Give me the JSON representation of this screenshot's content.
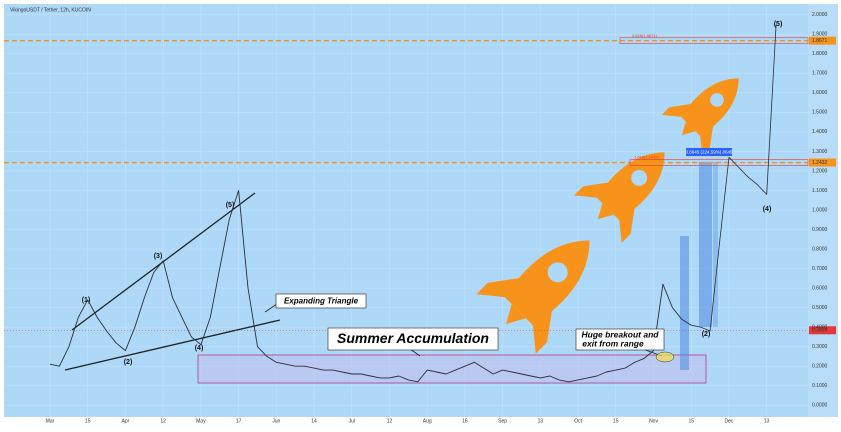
{
  "chart_data": {
    "type": "line",
    "title": "VikingoUSDT / Tether, 12h, KUCOIN",
    "categories": [
      "Mar",
      null,
      null,
      null,
      "15",
      null,
      null,
      null,
      "Apr",
      null,
      null,
      null,
      "12",
      null,
      null,
      null,
      "May",
      null,
      null,
      null,
      "17",
      null,
      null,
      null,
      "Jun",
      null,
      null,
      null,
      "14",
      null,
      null,
      null,
      "Jul",
      null,
      null,
      null,
      "12",
      null,
      null,
      null,
      "Aug",
      null,
      null,
      null,
      "16",
      null,
      null,
      null,
      "Sep",
      null,
      null,
      null,
      "13",
      null,
      null,
      null,
      "Oct",
      null,
      null,
      null,
      "15",
      null,
      null,
      null,
      "Nov",
      null,
      null,
      null,
      "15",
      null,
      null,
      null,
      "Dec",
      null,
      null,
      null,
      "13",
      null
    ],
    "series": [
      {
        "color": "#2a2e39",
        "values": [
          0.21,
          0.2,
          0.3,
          0.45,
          0.54,
          0.45,
          0.38,
          0.32,
          0.28,
          0.4,
          0.55,
          0.68,
          0.74,
          0.55,
          0.45,
          0.35,
          0.31,
          0.45,
          0.7,
          0.95,
          1.1,
          0.6,
          0.3,
          0.25,
          0.22,
          0.21,
          0.2,
          0.2,
          0.19,
          0.18,
          0.18,
          0.17,
          0.16,
          0.16,
          0.15,
          0.14,
          0.14,
          0.15,
          0.13,
          0.12,
          0.18,
          0.17,
          0.16,
          0.18,
          0.2,
          0.22,
          0.19,
          0.16,
          0.18,
          0.17,
          0.16,
          0.15,
          0.14,
          0.15,
          0.13,
          0.12,
          0.13,
          0.14,
          0.15,
          0.17,
          0.18,
          0.19,
          0.22,
          0.24,
          0.28,
          0.62,
          0.5,
          0.44,
          0.41,
          null,
          null,
          null,
          null,
          null,
          null,
          null,
          null,
          null
        ]
      },
      {
        "color": "#2a2e39",
        "values": [
          null,
          null,
          null,
          null,
          null,
          null,
          null,
          null,
          null,
          null,
          null,
          null,
          null,
          null,
          null,
          null,
          null,
          null,
          null,
          null,
          null,
          null,
          null,
          null,
          null,
          null,
          null,
          null,
          null,
          null,
          null,
          null,
          null,
          null,
          null,
          null,
          null,
          null,
          null,
          null,
          null,
          null,
          null,
          null,
          null,
          null,
          null,
          null,
          null,
          null,
          null,
          null,
          null,
          null,
          null,
          null,
          null,
          null,
          null,
          null,
          null,
          null,
          null,
          null,
          null,
          null,
          null,
          null,
          0.41,
          0.4,
          0.38,
          0.83,
          1.27,
          1.22,
          1.17,
          1.13,
          1.08,
          1.95
        ]
      }
    ],
    "ylim": [
      -0.05,
      2.05
    ],
    "yticks": [
      {
        "value": 0,
        "label": "0.0000"
      },
      {
        "value": 0.1,
        "label": "0.1000"
      },
      {
        "value": 0.2,
        "label": "0.2000"
      },
      {
        "value": 0.3,
        "label": "0.3000"
      },
      {
        "value": 0.4,
        "label": "0.4000"
      },
      {
        "value": 0.5,
        "label": "0.5000"
      },
      {
        "value": 0.6,
        "label": "0.6000"
      },
      {
        "value": 0.7,
        "label": "0.7000"
      },
      {
        "value": 0.8,
        "label": "0.8000"
      },
      {
        "value": 0.9,
        "label": "0.9000"
      },
      {
        "value": 1,
        "label": "1.0000"
      },
      {
        "value": 1.1,
        "label": "1.1000"
      },
      {
        "value": 1.2,
        "label": "1.2000"
      },
      {
        "value": 1.3,
        "label": "1.3000"
      },
      {
        "value": 1.4,
        "label": "1.4000"
      },
      {
        "value": 1.5,
        "label": "1.5000"
      },
      {
        "value": 1.6,
        "label": "1.6000"
      },
      {
        "value": 1.7,
        "label": "1.7000"
      },
      {
        "value": 1.8,
        "label": "1.8000"
      },
      {
        "value": 1.9,
        "label": "1.9000"
      },
      {
        "value": 2,
        "label": "2.0000"
      }
    ],
    "grid": true,
    "levels": [
      1.8671,
      1.2432
    ],
    "level_color": "#f7931a",
    "last_price": 0.3839,
    "last_price_color": "#e53935",
    "fib_labels": [
      "2.618(1.8671)",
      "1.618(1.2432)"
    ],
    "annotations": {
      "triangle": "Expanding Triangle",
      "accumulation": "Summer Accumulation",
      "breakout_line1": "Huge breakout and",
      "breakout_line2": "exit from range",
      "waves": [
        "(1)",
        "(2)",
        "(3)",
        "(4)",
        "(5)"
      ],
      "projection_waves": [
        "(2)",
        "(4)",
        "(5)"
      ],
      "measure": "0.8645 (224.59%) 8645"
    }
  }
}
